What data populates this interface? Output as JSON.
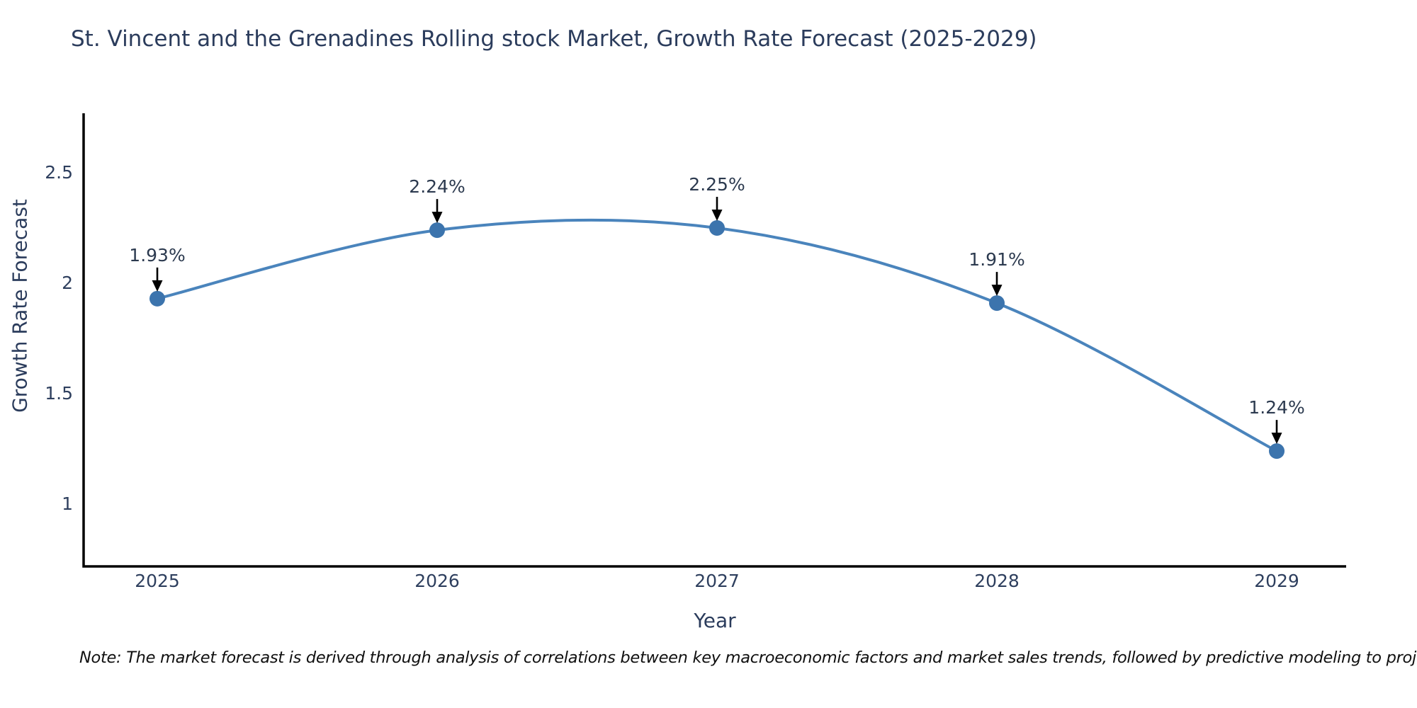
{
  "note": "Note: The market forecast is derived through analysis of correlations between key macroeconomic factors and market sales trends, followed by predictive modeling to project future sales",
  "chart_data": {
    "type": "line",
    "title": "St. Vincent and the Grenadines Rolling stock Market, Growth Rate Forecast (2025-2029)",
    "xlabel": "Year",
    "ylabel": "Growth Rate Forecast",
    "x": [
      2025,
      2026,
      2027,
      2028,
      2029
    ],
    "y": [
      1.93,
      2.24,
      2.25,
      1.91,
      1.24
    ],
    "point_labels": [
      "1.93%",
      "2.24%",
      "2.25%",
      "1.91%",
      "1.24%"
    ],
    "yticks": [
      1,
      1.5,
      2,
      2.5
    ],
    "ylim": [
      0.72,
      2.77
    ],
    "line_shape": "spline",
    "markers": true,
    "grid": false,
    "legend": false,
    "line_color": "#4a84bc",
    "marker_color": "#3c74ad",
    "axis_color": "#000000",
    "annotation_arrow_color": "#000000",
    "title_color": "#2b3c5c"
  }
}
